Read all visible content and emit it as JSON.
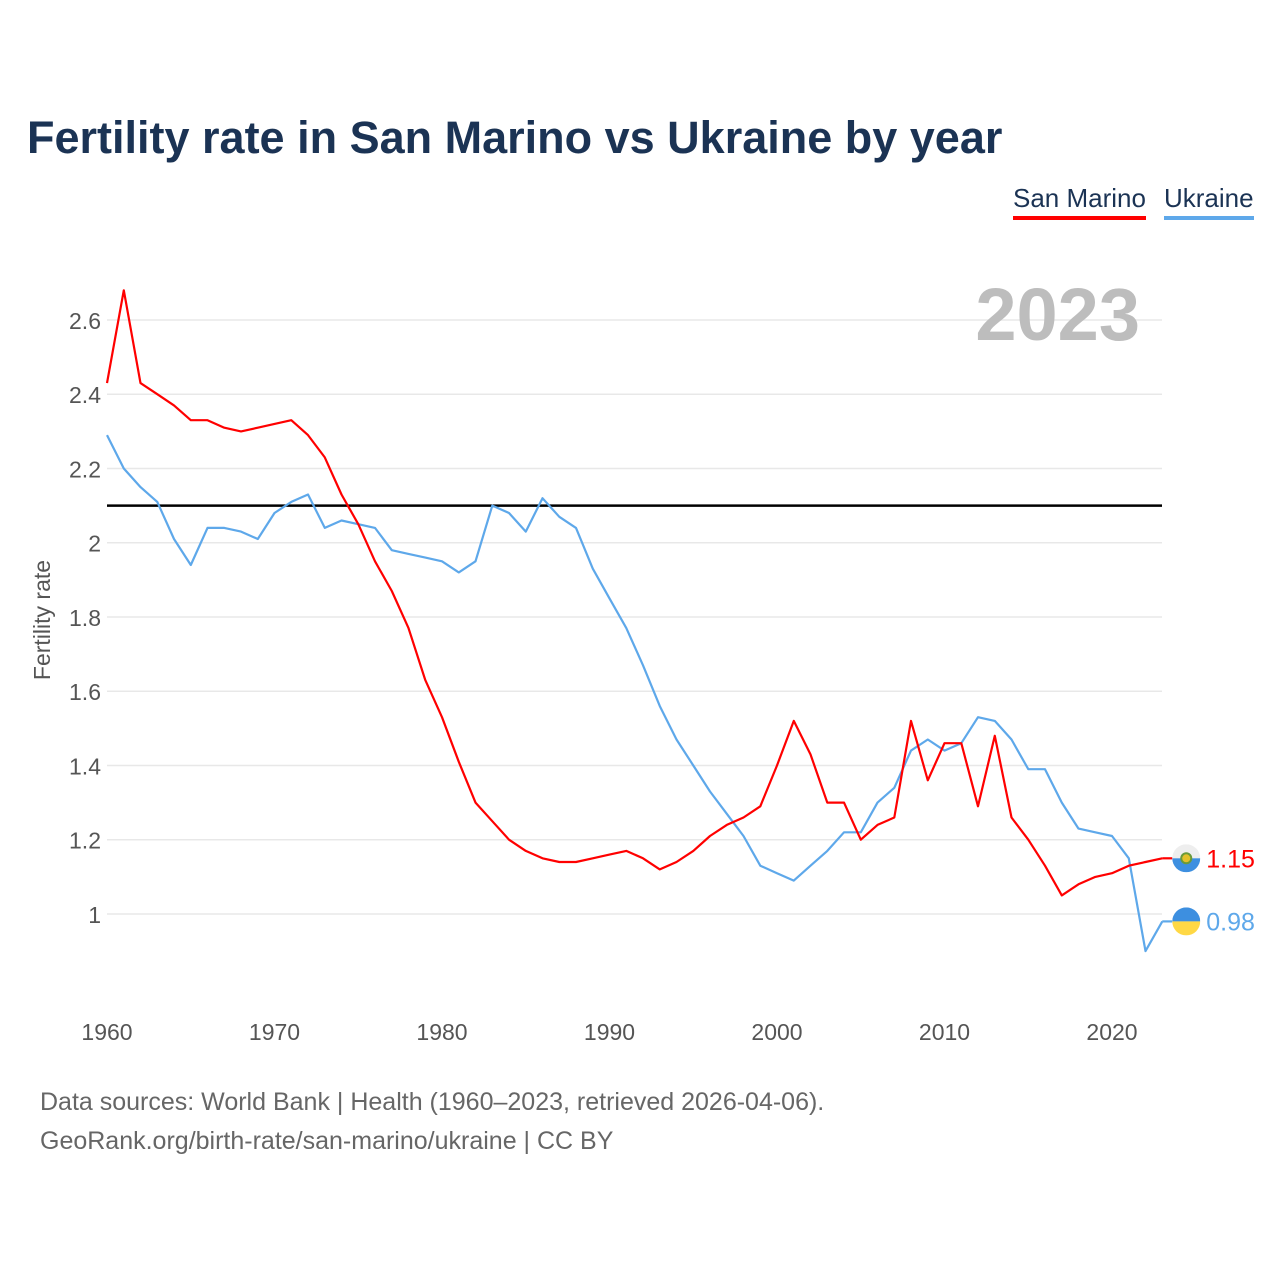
{
  "chart_data": {
    "type": "line",
    "title": "Fertility rate in San Marino vs Ukraine by year",
    "xlabel": "",
    "ylabel": "Fertility rate",
    "xlim": [
      1960,
      2023
    ],
    "ylim": [
      0.75,
      2.8
    ],
    "x_ticks": [
      1960,
      1970,
      1980,
      1990,
      2000,
      2010,
      2020
    ],
    "y_ticks": [
      1,
      1.2,
      1.4,
      1.6,
      1.8,
      2,
      2.2,
      2.4,
      2.6
    ],
    "y_tick_labels": [
      "1",
      "1.2",
      "1.4",
      "1.6",
      "1.8",
      "2",
      "2.2",
      "2.4",
      "2.6"
    ],
    "grid": true,
    "legend_position": "top-right",
    "reference_line": 2.1,
    "year_label": "2023",
    "x": [
      1960,
      1961,
      1962,
      1963,
      1964,
      1965,
      1966,
      1967,
      1968,
      1969,
      1970,
      1971,
      1972,
      1973,
      1974,
      1975,
      1976,
      1977,
      1978,
      1979,
      1980,
      1981,
      1982,
      1983,
      1984,
      1985,
      1986,
      1987,
      1988,
      1989,
      1990,
      1991,
      1992,
      1993,
      1994,
      1995,
      1996,
      1997,
      1998,
      1999,
      2000,
      2001,
      2002,
      2003,
      2004,
      2005,
      2006,
      2007,
      2008,
      2009,
      2010,
      2011,
      2012,
      2013,
      2014,
      2015,
      2016,
      2017,
      2018,
      2019,
      2020,
      2021,
      2022,
      2023
    ],
    "series": [
      {
        "name": "San Marino",
        "color": "#ff0000",
        "end_label": "1.15",
        "values": [
          2.43,
          2.68,
          2.43,
          2.4,
          2.37,
          2.33,
          2.33,
          2.31,
          2.3,
          2.31,
          2.32,
          2.33,
          2.29,
          2.23,
          2.13,
          2.05,
          1.95,
          1.87,
          1.77,
          1.63,
          1.53,
          1.41,
          1.3,
          1.25,
          1.2,
          1.17,
          1.15,
          1.14,
          1.14,
          1.15,
          1.16,
          1.17,
          1.15,
          1.12,
          1.14,
          1.17,
          1.21,
          1.24,
          1.26,
          1.29,
          1.4,
          1.52,
          1.43,
          1.3,
          1.3,
          1.2,
          1.24,
          1.26,
          1.52,
          1.36,
          1.46,
          1.46,
          1.29,
          1.48,
          1.26,
          1.2,
          1.13,
          1.05,
          1.08,
          1.1,
          1.11,
          1.13,
          1.14,
          1.15
        ]
      },
      {
        "name": "Ukraine",
        "color": "#5ea8ea",
        "end_label": "0.98",
        "values": [
          2.29,
          2.2,
          2.15,
          2.11,
          2.01,
          1.94,
          2.04,
          2.04,
          2.03,
          2.01,
          2.08,
          2.11,
          2.13,
          2.04,
          2.06,
          2.05,
          2.04,
          1.98,
          1.97,
          1.96,
          1.95,
          1.92,
          1.95,
          2.1,
          2.08,
          2.03,
          2.12,
          2.07,
          2.04,
          1.93,
          1.85,
          1.77,
          1.67,
          1.56,
          1.47,
          1.4,
          1.33,
          1.27,
          1.21,
          1.13,
          1.11,
          1.09,
          1.13,
          1.17,
          1.22,
          1.22,
          1.3,
          1.34,
          1.44,
          1.47,
          1.44,
          1.46,
          1.53,
          1.52,
          1.47,
          1.39,
          1.39,
          1.3,
          1.23,
          1.22,
          1.21,
          1.15,
          0.9,
          0.98
        ]
      }
    ]
  },
  "footer": {
    "sources": "Data sources: World Bank | Health (1960–2023, retrieved 2026-04-06).",
    "credit": "GeoRank.org/birth-rate/san-marino/ukraine | CC BY"
  }
}
